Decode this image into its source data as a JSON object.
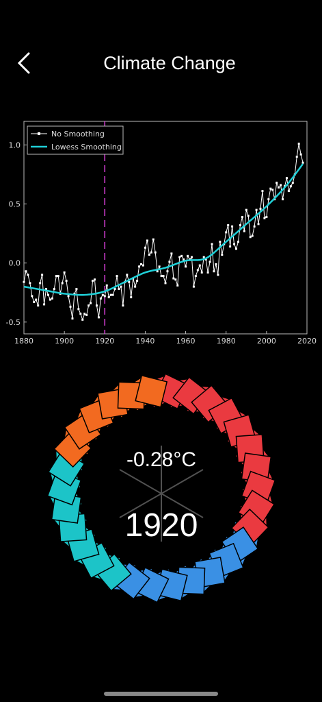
{
  "header": {
    "title": "Climate Change"
  },
  "chart_data": {
    "type": "line",
    "x": [
      1880,
      1881,
      1882,
      1883,
      1884,
      1885,
      1886,
      1887,
      1888,
      1889,
      1890,
      1891,
      1892,
      1893,
      1894,
      1895,
      1896,
      1897,
      1898,
      1899,
      1900,
      1901,
      1902,
      1903,
      1904,
      1905,
      1906,
      1907,
      1908,
      1909,
      1910,
      1911,
      1912,
      1913,
      1914,
      1915,
      1916,
      1917,
      1918,
      1919,
      1920,
      1921,
      1922,
      1923,
      1924,
      1925,
      1926,
      1927,
      1928,
      1929,
      1930,
      1931,
      1932,
      1933,
      1934,
      1935,
      1936,
      1937,
      1938,
      1939,
      1940,
      1941,
      1942,
      1943,
      1944,
      1945,
      1946,
      1947,
      1948,
      1949,
      1950,
      1951,
      1952,
      1953,
      1954,
      1955,
      1956,
      1957,
      1958,
      1959,
      1960,
      1961,
      1962,
      1963,
      1964,
      1965,
      1966,
      1967,
      1968,
      1969,
      1970,
      1971,
      1972,
      1973,
      1974,
      1975,
      1976,
      1977,
      1978,
      1979,
      1980,
      1981,
      1982,
      1983,
      1984,
      1985,
      1986,
      1987,
      1988,
      1989,
      1990,
      1991,
      1992,
      1993,
      1994,
      1995,
      1996,
      1997,
      1998,
      1999,
      2000,
      2001,
      2002,
      2003,
      2004,
      2005,
      2006,
      2007,
      2008,
      2009,
      2010,
      2011,
      2012,
      2013,
      2014,
      2015,
      2016,
      2017,
      2018
    ],
    "series": [
      {
        "name": "No Smoothing",
        "color": "#ffffff",
        "values": [
          -0.16,
          -0.07,
          -0.1,
          -0.17,
          -0.28,
          -0.33,
          -0.31,
          -0.36,
          -0.17,
          -0.1,
          -0.35,
          -0.22,
          -0.27,
          -0.31,
          -0.3,
          -0.22,
          -0.11,
          -0.11,
          -0.26,
          -0.17,
          -0.08,
          -0.15,
          -0.28,
          -0.37,
          -0.47,
          -0.26,
          -0.22,
          -0.39,
          -0.43,
          -0.48,
          -0.43,
          -0.44,
          -0.36,
          -0.34,
          -0.15,
          -0.14,
          -0.36,
          -0.46,
          -0.3,
          -0.27,
          -0.28,
          -0.19,
          -0.29,
          -0.27,
          -0.27,
          -0.22,
          -0.11,
          -0.22,
          -0.2,
          -0.36,
          -0.16,
          -0.1,
          -0.16,
          -0.29,
          -0.13,
          -0.2,
          -0.15,
          -0.03,
          -0.01,
          -0.02,
          0.13,
          0.19,
          0.07,
          0.09,
          0.2,
          0.09,
          -0.07,
          -0.03,
          -0.11,
          -0.11,
          -0.17,
          -0.07,
          0.01,
          0.08,
          -0.13,
          -0.14,
          -0.19,
          0.05,
          0.06,
          0.03,
          -0.03,
          0.06,
          0.03,
          0.05,
          -0.2,
          -0.11,
          -0.06,
          -0.02,
          -0.08,
          0.05,
          0.03,
          -0.08,
          0.01,
          0.16,
          -0.07,
          -0.01,
          -0.1,
          0.18,
          0.07,
          0.16,
          0.26,
          0.32,
          0.14,
          0.31,
          0.16,
          0.12,
          0.18,
          0.32,
          0.39,
          0.27,
          0.45,
          0.4,
          0.22,
          0.23,
          0.31,
          0.45,
          0.33,
          0.46,
          0.61,
          0.38,
          0.39,
          0.54,
          0.63,
          0.62,
          0.54,
          0.68,
          0.64,
          0.66,
          0.54,
          0.65,
          0.72,
          0.61,
          0.65,
          0.68,
          0.75,
          0.9,
          1.01,
          0.92,
          0.85
        ]
      },
      {
        "name": "Lowess Smoothing",
        "color": "#1fd0d8",
        "x": [
          1880,
          1890,
          1900,
          1910,
          1920,
          1930,
          1940,
          1950,
          1960,
          1970,
          1980,
          1990,
          2000,
          2010,
          2018
        ],
        "values": [
          -0.2,
          -0.23,
          -0.26,
          -0.27,
          -0.24,
          -0.16,
          -0.08,
          -0.04,
          0.02,
          0.04,
          0.18,
          0.33,
          0.48,
          0.66,
          0.84
        ]
      }
    ],
    "xlim": [
      1880,
      2020
    ],
    "xticks": [
      1880,
      1900,
      1920,
      1940,
      1960,
      1980,
      2000,
      2020
    ],
    "ylim": [
      -0.6,
      1.2
    ],
    "yticks": [
      {
        "value": -0.5,
        "label": "-0.5"
      },
      {
        "value": 0,
        "label": "0.0"
      },
      {
        "value": 0.5,
        "label": "0.5"
      },
      {
        "value": 1,
        "label": "1.0"
      }
    ],
    "marker_x": 1920,
    "marker_color": "#e040e0",
    "legend": "upper left"
  },
  "readout": {
    "temperature": "-0.28°C",
    "year": "1920"
  }
}
